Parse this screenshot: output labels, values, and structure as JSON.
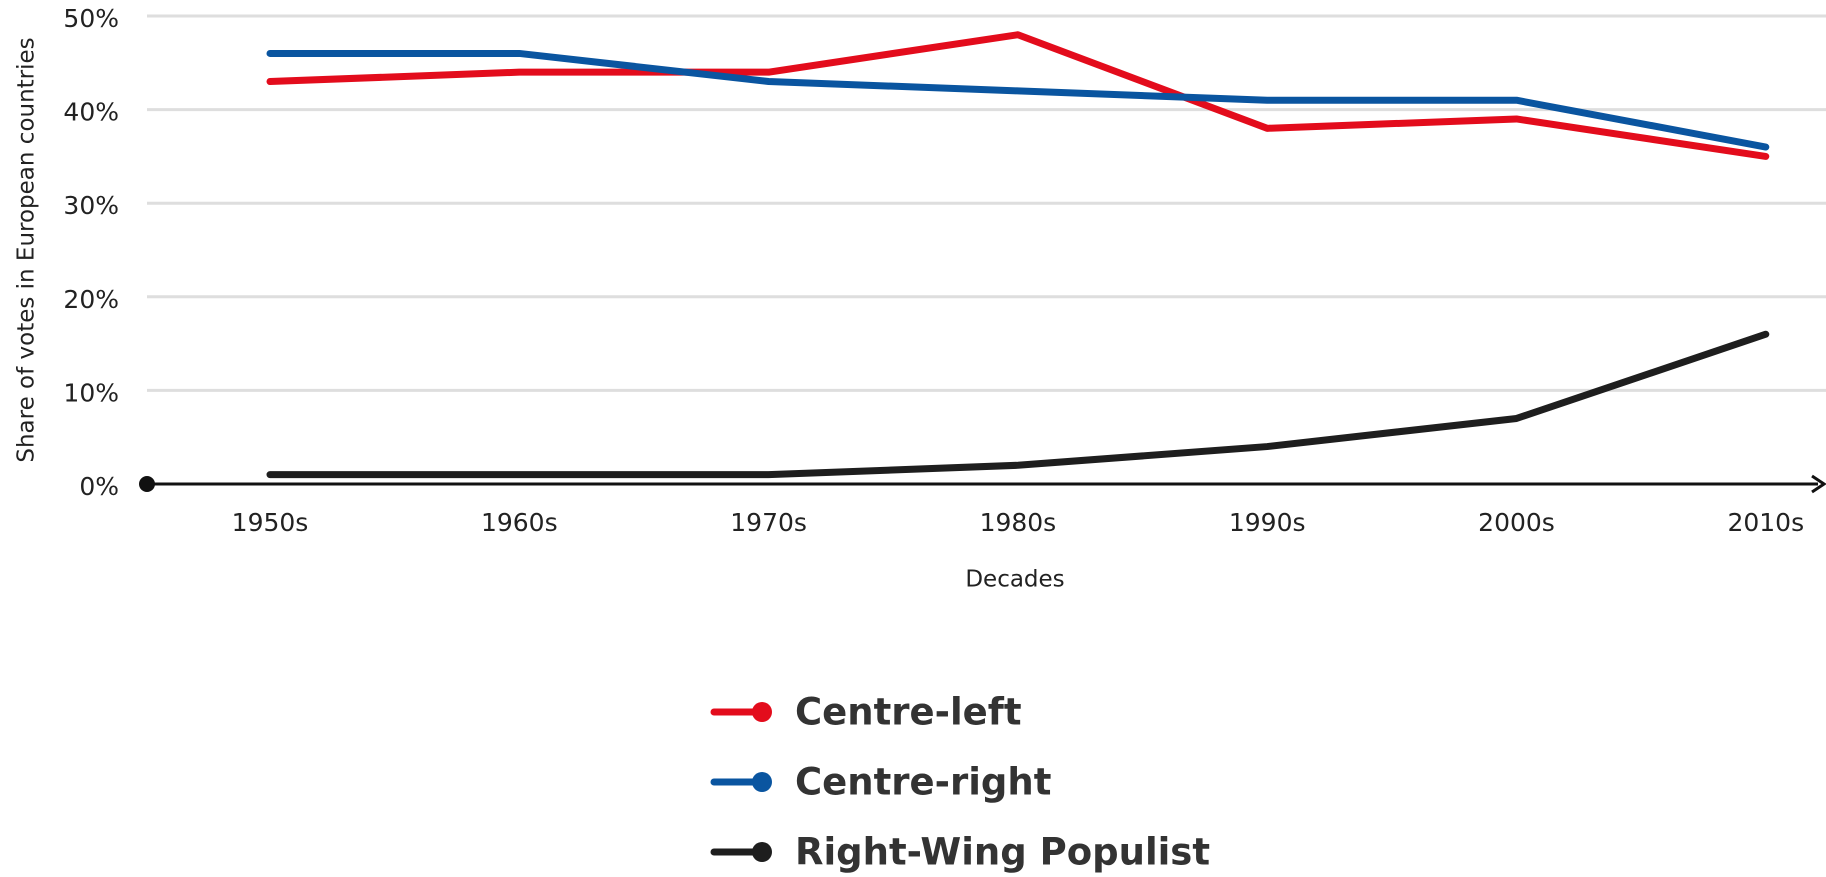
{
  "chart_data": {
    "type": "line",
    "x_label": "Decades",
    "y_label": "Share of votes in European countries",
    "categories": [
      "1950s",
      "1960s",
      "1970s",
      "1980s",
      "1990s",
      "2000s",
      "2010s"
    ],
    "series": [
      {
        "name": "Centre-left",
        "color": "#e30c1c",
        "values": [
          43,
          44,
          44,
          48,
          38,
          39,
          35
        ]
      },
      {
        "name": "Centre-right",
        "color": "#0a55a0",
        "values": [
          46,
          46,
          43,
          42,
          41,
          41,
          36
        ]
      },
      {
        "name": "Right-Wing Populist",
        "color": "#1e1e1e",
        "values": [
          1,
          1,
          1,
          2,
          4,
          7,
          16
        ]
      }
    ],
    "ylim": [
      0,
      50
    ],
    "yticks": [
      {
        "value": 0,
        "label": "0%"
      },
      {
        "value": 10,
        "label": "10%"
      },
      {
        "value": 20,
        "label": "20%"
      },
      {
        "value": 30,
        "label": "30%"
      },
      {
        "value": 40,
        "label": "40%"
      },
      {
        "value": 50,
        "label": "50%"
      }
    ],
    "grid": true
  }
}
